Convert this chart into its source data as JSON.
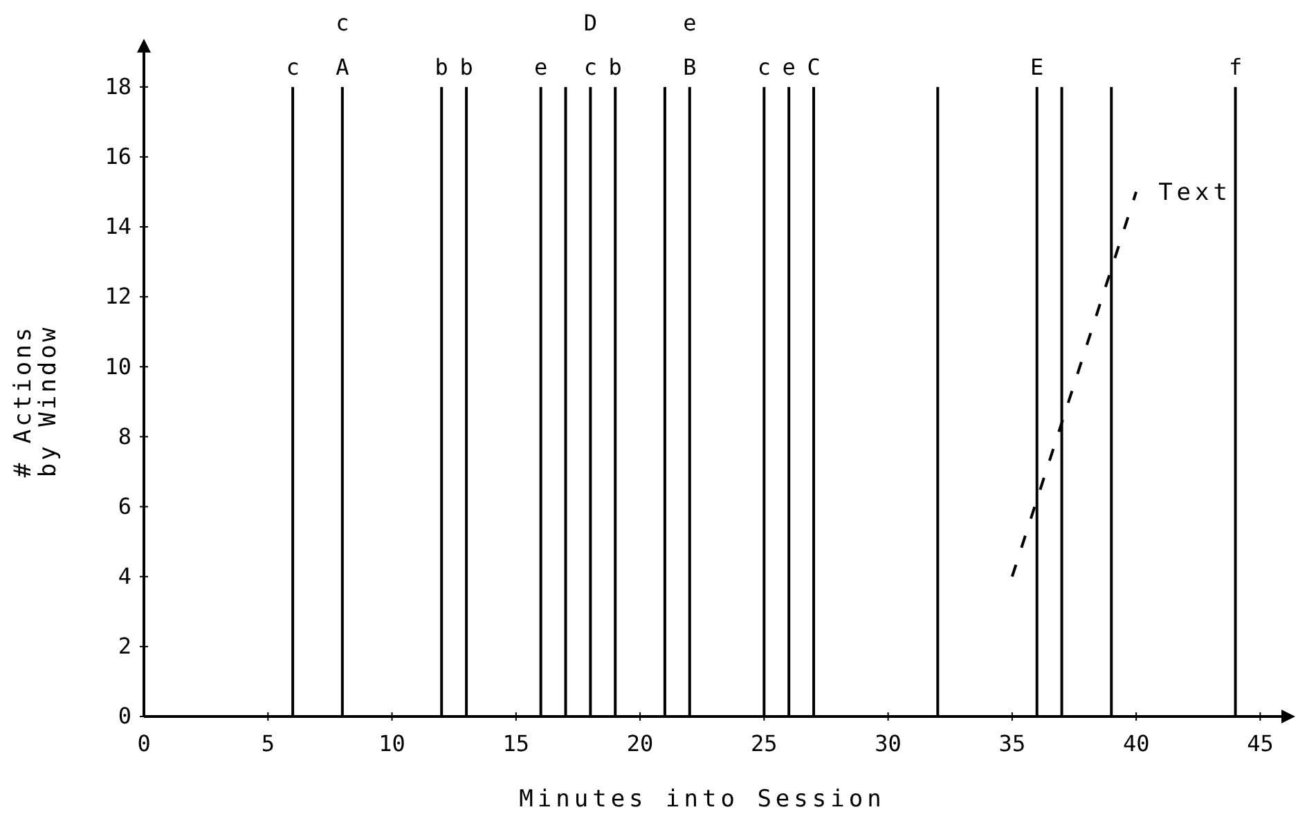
{
  "chart_data": {
    "type": "line",
    "xlabel": "Minutes into Session",
    "ylabel": "# Actions\nby Window",
    "xlim": [
      0,
      46.3
    ],
    "ylim": [
      0,
      19.3
    ],
    "xticks": [
      0,
      5,
      10,
      15,
      20,
      25,
      30,
      35,
      40,
      45
    ],
    "yticks": [
      0,
      2,
      4,
      6,
      8,
      10,
      12,
      14,
      16,
      18
    ],
    "grid": false,
    "line_style": "dashed",
    "marker": "none",
    "series": [
      {
        "name": "Text",
        "color": "#000000",
        "x": [
          35,
          40
        ],
        "values": [
          4,
          15
        ]
      }
    ],
    "ref_lines": [
      {
        "axis": "x",
        "value": 6,
        "label": "c"
      },
      {
        "axis": "x",
        "value": 8,
        "label": "c\nA"
      },
      {
        "axis": "x",
        "value": 12,
        "label": "b"
      },
      {
        "axis": "x",
        "value": 13,
        "label": "b"
      },
      {
        "axis": "x",
        "value": 16,
        "label": "e"
      },
      {
        "axis": "x",
        "value": 17,
        "label": null
      },
      {
        "axis": "x",
        "value": 18,
        "label": "D\nc"
      },
      {
        "axis": "x",
        "value": 19,
        "label": "b"
      },
      {
        "axis": "x",
        "value": 21,
        "label": null
      },
      {
        "axis": "x",
        "value": 22,
        "label": "e\nB"
      },
      {
        "axis": "x",
        "value": 25,
        "label": "c"
      },
      {
        "axis": "x",
        "value": 26,
        "label": "e"
      },
      {
        "axis": "x",
        "value": 27,
        "label": "C"
      },
      {
        "axis": "x",
        "value": 32,
        "label": null
      },
      {
        "axis": "x",
        "value": 36,
        "label": "E"
      },
      {
        "axis": "x",
        "value": 37,
        "label": null
      },
      {
        "axis": "x",
        "value": 39,
        "label": null
      },
      {
        "axis": "x",
        "value": 44,
        "label": "f"
      }
    ]
  }
}
